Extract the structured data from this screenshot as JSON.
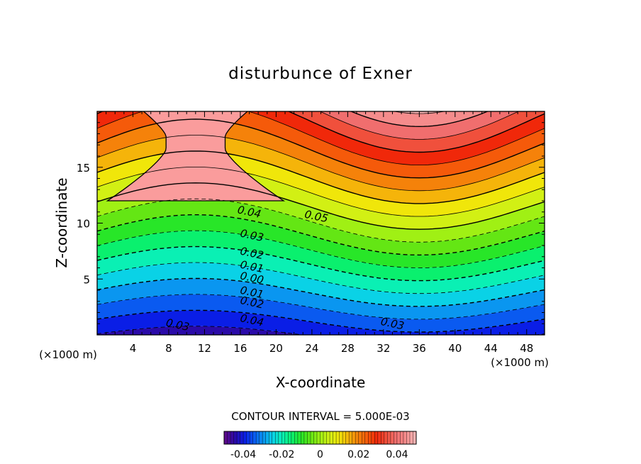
{
  "chart_data": {
    "type": "contour",
    "title": "disturbunce of Exner",
    "xlabel": "X-coordinate",
    "ylabel": "Z-coordinate",
    "x_unit_left": "(×1000 m)",
    "x_unit_right": "(×1000 m)",
    "xlim": [
      0,
      50
    ],
    "ylim": [
      0,
      20
    ],
    "x_ticks": [
      4,
      8,
      12,
      16,
      20,
      24,
      28,
      32,
      36,
      40,
      44,
      48
    ],
    "y_ticks": [
      5,
      10,
      15
    ],
    "contour_interval_text": "CONTOUR INTERVAL = 5.000E-03",
    "contour_levels": [
      -0.05,
      -0.045,
      -0.04,
      -0.035,
      -0.03,
      -0.025,
      -0.02,
      -0.015,
      -0.01,
      -0.005,
      0.0,
      0.005,
      0.01,
      0.015,
      0.02,
      0.025,
      0.03,
      0.035,
      0.04,
      0.045,
      0.05
    ],
    "contour_labels": [
      {
        "text": "0.04",
        "x": 17.0,
        "z": 11.0
      },
      {
        "text": "0.05",
        "x": 24.5,
        "z": 10.6
      },
      {
        "text": "0.03",
        "x": 17.3,
        "z": 8.9
      },
      {
        "text": "0.02",
        "x": 17.3,
        "z": 7.3
      },
      {
        "text": "0.01",
        "x": 17.3,
        "z": 6.1
      },
      {
        "text": "0.00",
        "x": 17.3,
        "z": 5.1
      },
      {
        "text": "0.01",
        "x": 17.3,
        "z": 3.8
      },
      {
        "text": "0.02",
        "x": 17.3,
        "z": 2.9
      },
      {
        "text": "0.04",
        "x": 17.3,
        "z": 1.3
      },
      {
        "text": "0.03",
        "x": 9.0,
        "z": 0.9
      },
      {
        "text": "0.03",
        "x": 33.0,
        "z": 1.0
      }
    ],
    "colorbar": {
      "ticks": [
        "-0.04",
        "-0.02",
        "0",
        "0.02",
        "0.04"
      ],
      "tick_values": [
        -0.04,
        -0.02,
        0,
        0.02,
        0.04
      ],
      "range": [
        -0.05,
        0.05
      ]
    },
    "fill_colors": [
      "#5a0a8c",
      "#2a0aa8",
      "#0a1ee6",
      "#0a5af0",
      "#0a96f0",
      "#0ad2e6",
      "#0af0b4",
      "#0af06e",
      "#28e628",
      "#64e614",
      "#a0f014",
      "#d2f014",
      "#f0e60a",
      "#f5b40a",
      "#f5820a",
      "#f55a0a",
      "#f0280a",
      "#f0503c",
      "#f06e6e",
      "#f58c8c",
      "#fab4b4"
    ]
  }
}
